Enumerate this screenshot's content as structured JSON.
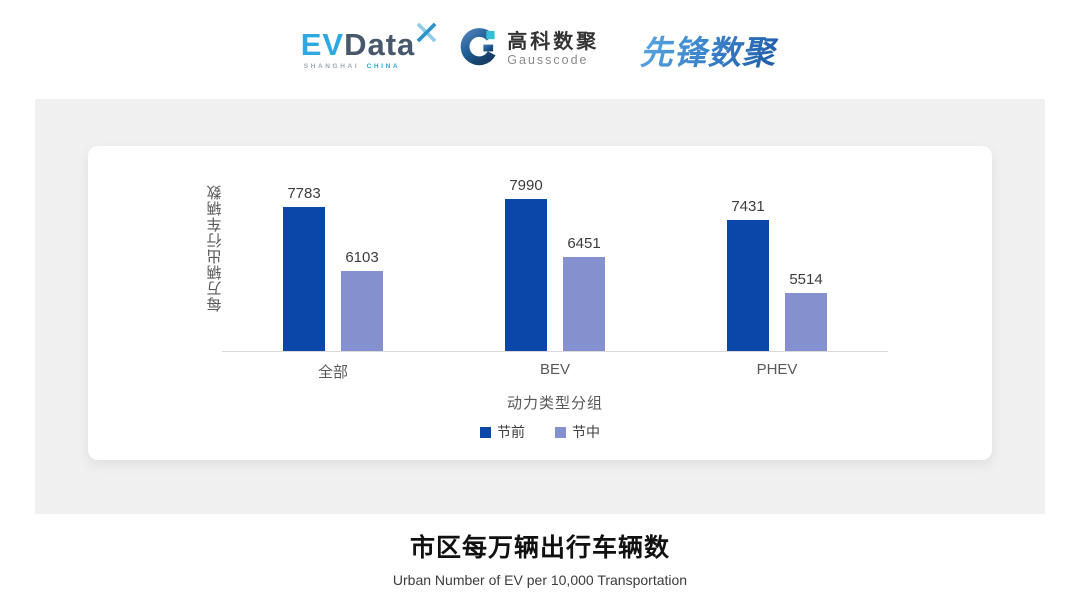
{
  "header": {
    "evdata": {
      "ev": "EV",
      "data": "Data",
      "caption_left": "SHANGHAI",
      "caption_right": "CHINA",
      "accent_color": "#2BA9E0",
      "dark_color": "#47586B"
    },
    "gausscode": {
      "cn": "高科数聚",
      "en": "Gausscode"
    },
    "xianfeng": {
      "text": "先锋数聚",
      "color": "#2E6FB7"
    }
  },
  "chart_data": {
    "type": "bar",
    "title": "市区每万辆出行车辆数",
    "subtitle": "Urban Number of EV per 10,000 Transportation",
    "categories": [
      "全部",
      "BEV",
      "PHEV"
    ],
    "series": [
      {
        "name": "节前",
        "color": "#0A47A8",
        "values": [
          7783,
          7990,
          7431
        ]
      },
      {
        "name": "节中",
        "color": "#8591CE",
        "values": [
          6103,
          6451,
          5514
        ]
      }
    ],
    "xlabel": "动力类型分组",
    "ylabel": "每万辆出行车辆数",
    "ylim": [
      4000,
      8400
    ],
    "grid": false,
    "legend_position": "bottom",
    "value_labels": true,
    "axis_line_color": "#d9d9d9"
  }
}
